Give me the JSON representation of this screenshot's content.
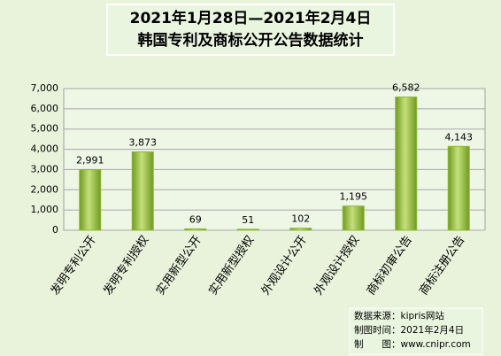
{
  "chart_data": {
    "type": "bar",
    "title": "2021年1月28日—2021年2月4日",
    "subtitle": "韩国专利及商标公开公告数据统计",
    "categories": [
      "发明专利公开",
      "发明专利授权",
      "实用新型公开",
      "实用新型授权",
      "外观设计公开",
      "外观设计授权",
      "商标初审公告",
      "商标注册公告"
    ],
    "values": [
      2991,
      3873,
      69,
      51,
      102,
      1195,
      6582,
      4143
    ],
    "value_labels": [
      "2,991",
      "3,873",
      "69",
      "51",
      "102",
      "1,195",
      "6,582",
      "4,143"
    ],
    "color": "#8db83a",
    "ylim": [
      0,
      7000
    ],
    "yticks": [
      0,
      {
        "value": 1000,
        "label": "1,000"
      },
      {
        "value": 2000,
        "label": "2,000"
      },
      {
        "value": 3000,
        "label": "3,000"
      },
      {
        "value": 4000,
        "label": "4,000"
      },
      {
        "value": 5000,
        "label": "5,000"
      },
      {
        "value": 6000,
        "label": "6,000"
      },
      {
        "value": 7000,
        "label": "7,000"
      }
    ],
    "grid": true,
    "notes": [
      "数据来源：kipris网站",
      "制图时间：2021年2月4日",
      "制　　图：www.cnipr.com"
    ]
  }
}
